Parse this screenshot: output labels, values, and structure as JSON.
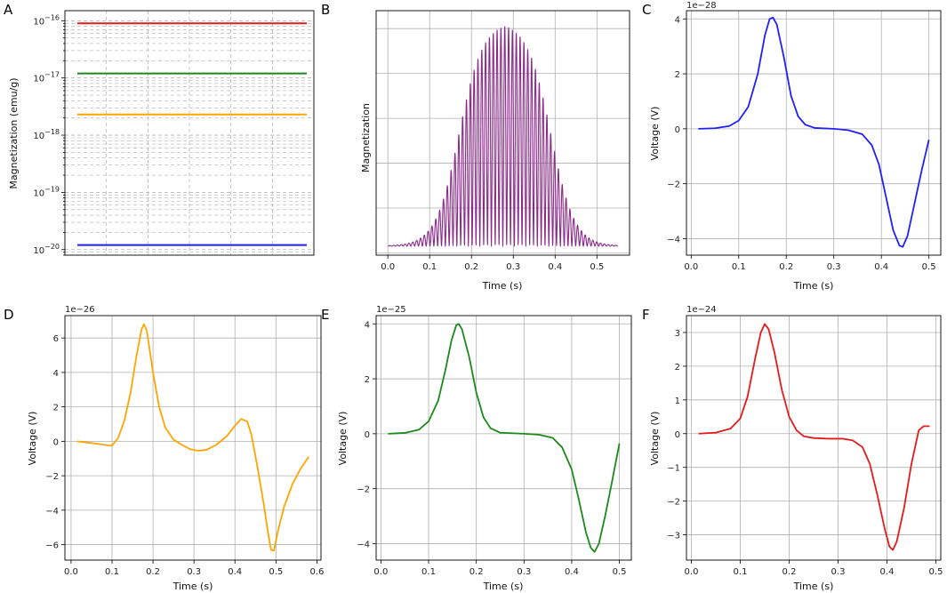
{
  "chart_data": [
    {
      "id": "A",
      "panel_label": "A",
      "type": "line",
      "yscale": "log",
      "ylabel": "Magnetization (emu/g)",
      "xlabel": "",
      "ylim": [
        8e-21,
        1.5e-16
      ],
      "ytick_values": [
        1e-16,
        1e-17,
        1e-18,
        1e-19,
        1e-20
      ],
      "ytick_labels": [
        {
          "base": "10",
          "exp": "−16"
        },
        {
          "base": "10",
          "exp": "−17"
        },
        {
          "base": "10",
          "exp": "−18"
        },
        {
          "base": "10",
          "exp": "−19"
        },
        {
          "base": "10",
          "exp": "−20"
        }
      ],
      "grid": true,
      "series": [
        {
          "name": "red",
          "color": "#e41a1c",
          "value": 9e-17
        },
        {
          "name": "green",
          "color": "#1a8a1a",
          "value": 1.2e-17
        },
        {
          "name": "orange",
          "color": "#ffa500",
          "value": 2.3e-18
        },
        {
          "name": "blue",
          "color": "#1f1fff",
          "value": 1.2e-20
        }
      ]
    },
    {
      "id": "B",
      "panel_label": "B",
      "type": "line",
      "color": "#8b2a8b",
      "xlabel": "Time (s)",
      "ylabel": "Magnetization",
      "xlim": [
        -0.028,
        0.578
      ],
      "ylim": [
        -0.04,
        1.05
      ],
      "xticks": [
        0.0,
        0.1,
        0.2,
        0.3,
        0.4,
        0.5
      ],
      "xtick_labels": [
        "0.0",
        "0.1",
        "0.2",
        "0.3",
        "0.4",
        "0.5"
      ],
      "grid": true,
      "signal": {
        "t_start": 0.0,
        "t_end": 0.55,
        "center": 0.28,
        "plateau_halfwidth": 0.11,
        "edge_width": 0.028,
        "oscillations": 60,
        "peak": 1.0
      }
    },
    {
      "id": "C",
      "panel_label": "C",
      "type": "line",
      "color": "#1f1fff",
      "xlabel": "Time (s)",
      "ylabel": "Voltage (V)",
      "offset_text": "1e−28",
      "xlim": [
        -0.01,
        0.525
      ],
      "ylim": [
        -4.6,
        4.3
      ],
      "xticks": [
        0.0,
        0.1,
        0.2,
        0.3,
        0.4,
        0.5
      ],
      "xtick_labels": [
        "0.0",
        "0.1",
        "0.2",
        "0.3",
        "0.4",
        "0.5"
      ],
      "yticks": [
        -4,
        -2,
        0,
        2,
        4
      ],
      "ytick_labels": [
        "−4",
        "−2",
        "0",
        "2",
        "4"
      ],
      "grid": true,
      "points": [
        [
          0.015,
          0.0
        ],
        [
          0.05,
          0.02
        ],
        [
          0.08,
          0.1
        ],
        [
          0.1,
          0.3
        ],
        [
          0.12,
          0.8
        ],
        [
          0.14,
          2.0
        ],
        [
          0.155,
          3.4
        ],
        [
          0.165,
          4.0
        ],
        [
          0.172,
          4.05
        ],
        [
          0.18,
          3.8
        ],
        [
          0.195,
          2.6
        ],
        [
          0.21,
          1.2
        ],
        [
          0.225,
          0.45
        ],
        [
          0.24,
          0.15
        ],
        [
          0.26,
          0.03
        ],
        [
          0.3,
          0.0
        ],
        [
          0.33,
          -0.05
        ],
        [
          0.36,
          -0.2
        ],
        [
          0.38,
          -0.6
        ],
        [
          0.395,
          -1.3
        ],
        [
          0.41,
          -2.5
        ],
        [
          0.425,
          -3.7
        ],
        [
          0.438,
          -4.25
        ],
        [
          0.445,
          -4.3
        ],
        [
          0.455,
          -3.9
        ],
        [
          0.47,
          -2.7
        ],
        [
          0.485,
          -1.5
        ],
        [
          0.5,
          -0.4
        ]
      ]
    },
    {
      "id": "D",
      "panel_label": "D",
      "type": "line",
      "color": "#ffa500",
      "xlabel": "Time (s)",
      "ylabel": "Voltage (V)",
      "offset_text": "1e−26",
      "xlim": [
        -0.015,
        0.61
      ],
      "ylim": [
        -6.9,
        7.3
      ],
      "xticks": [
        0.0,
        0.1,
        0.2,
        0.3,
        0.4,
        0.5,
        0.6
      ],
      "xtick_labels": [
        "0.0",
        "0.1",
        "0.2",
        "0.3",
        "0.4",
        "0.5",
        "0.6"
      ],
      "yticks": [
        -6,
        -4,
        -2,
        0,
        2,
        4,
        6
      ],
      "ytick_labels": [
        "−6",
        "−4",
        "−2",
        "0",
        "2",
        "4",
        "6"
      ],
      "grid": true,
      "points": [
        [
          0.015,
          0.0
        ],
        [
          0.05,
          -0.1
        ],
        [
          0.08,
          -0.2
        ],
        [
          0.1,
          -0.25
        ],
        [
          0.115,
          0.2
        ],
        [
          0.13,
          1.2
        ],
        [
          0.145,
          2.8
        ],
        [
          0.16,
          5.0
        ],
        [
          0.172,
          6.5
        ],
        [
          0.178,
          6.8
        ],
        [
          0.185,
          6.4
        ],
        [
          0.2,
          4.0
        ],
        [
          0.215,
          2.0
        ],
        [
          0.23,
          0.8
        ],
        [
          0.25,
          0.1
        ],
        [
          0.27,
          -0.2
        ],
        [
          0.29,
          -0.45
        ],
        [
          0.31,
          -0.55
        ],
        [
          0.33,
          -0.5
        ],
        [
          0.355,
          -0.2
        ],
        [
          0.38,
          0.3
        ],
        [
          0.4,
          0.9
        ],
        [
          0.415,
          1.3
        ],
        [
          0.43,
          1.15
        ],
        [
          0.44,
          0.4
        ],
        [
          0.455,
          -1.5
        ],
        [
          0.47,
          -3.6
        ],
        [
          0.48,
          -5.2
        ],
        [
          0.488,
          -6.3
        ],
        [
          0.495,
          -6.35
        ],
        [
          0.505,
          -5.2
        ],
        [
          0.52,
          -3.8
        ],
        [
          0.54,
          -2.5
        ],
        [
          0.56,
          -1.6
        ],
        [
          0.58,
          -0.9
        ]
      ]
    },
    {
      "id": "E",
      "panel_label": "E",
      "type": "line",
      "color": "#1a8a1a",
      "xlabel": "Time (s)",
      "ylabel": "Voltage (V)",
      "offset_text": "1e−25",
      "xlim": [
        -0.01,
        0.525
      ],
      "ylim": [
        -4.6,
        4.3
      ],
      "xticks": [
        0.0,
        0.1,
        0.2,
        0.3,
        0.4,
        0.5
      ],
      "xtick_labels": [
        "0.0",
        "0.1",
        "0.2",
        "0.3",
        "0.4",
        "0.5"
      ],
      "yticks": [
        -4,
        -2,
        0,
        2,
        4
      ],
      "ytick_labels": [
        "−4",
        "−2",
        "0",
        "2",
        "4"
      ],
      "grid": true,
      "points": [
        [
          0.015,
          0.0
        ],
        [
          0.05,
          0.03
        ],
        [
          0.08,
          0.15
        ],
        [
          0.1,
          0.45
        ],
        [
          0.12,
          1.2
        ],
        [
          0.135,
          2.3
        ],
        [
          0.148,
          3.4
        ],
        [
          0.158,
          3.95
        ],
        [
          0.163,
          4.0
        ],
        [
          0.17,
          3.8
        ],
        [
          0.185,
          2.8
        ],
        [
          0.2,
          1.5
        ],
        [
          0.215,
          0.6
        ],
        [
          0.23,
          0.2
        ],
        [
          0.25,
          0.04
        ],
        [
          0.3,
          0.0
        ],
        [
          0.33,
          -0.03
        ],
        [
          0.36,
          -0.15
        ],
        [
          0.38,
          -0.5
        ],
        [
          0.4,
          -1.3
        ],
        [
          0.415,
          -2.4
        ],
        [
          0.43,
          -3.6
        ],
        [
          0.44,
          -4.15
        ],
        [
          0.448,
          -4.3
        ],
        [
          0.457,
          -4.0
        ],
        [
          0.47,
          -3.0
        ],
        [
          0.485,
          -1.7
        ],
        [
          0.5,
          -0.35
        ]
      ]
    },
    {
      "id": "F",
      "panel_label": "F",
      "type": "line",
      "color": "#e41a1c",
      "xlabel": "Time (s)",
      "ylabel": "Voltage (V)",
      "offset_text": "1e−24",
      "xlim": [
        -0.01,
        0.51
      ],
      "ylim": [
        -3.75,
        3.5
      ],
      "xticks": [
        0.0,
        0.1,
        0.2,
        0.3,
        0.4,
        0.5
      ],
      "xtick_labels": [
        "0.0",
        "0.1",
        "0.2",
        "0.3",
        "0.4",
        "0.5"
      ],
      "yticks": [
        -3,
        -2,
        -1,
        0,
        1,
        2,
        3
      ],
      "ytick_labels": [
        "−3",
        "−2",
        "−1",
        "0",
        "1",
        "2",
        "3"
      ],
      "grid": true,
      "points": [
        [
          0.015,
          0.0
        ],
        [
          0.05,
          0.03
        ],
        [
          0.08,
          0.15
        ],
        [
          0.1,
          0.45
        ],
        [
          0.115,
          1.1
        ],
        [
          0.13,
          2.2
        ],
        [
          0.142,
          3.0
        ],
        [
          0.15,
          3.25
        ],
        [
          0.158,
          3.1
        ],
        [
          0.17,
          2.4
        ],
        [
          0.185,
          1.3
        ],
        [
          0.2,
          0.5
        ],
        [
          0.215,
          0.1
        ],
        [
          0.23,
          -0.08
        ],
        [
          0.25,
          -0.13
        ],
        [
          0.28,
          -0.15
        ],
        [
          0.31,
          -0.15
        ],
        [
          0.33,
          -0.2
        ],
        [
          0.35,
          -0.4
        ],
        [
          0.365,
          -0.9
        ],
        [
          0.38,
          -1.8
        ],
        [
          0.395,
          -2.8
        ],
        [
          0.405,
          -3.35
        ],
        [
          0.412,
          -3.45
        ],
        [
          0.42,
          -3.2
        ],
        [
          0.435,
          -2.2
        ],
        [
          0.45,
          -0.9
        ],
        [
          0.465,
          0.1
        ],
        [
          0.475,
          0.22
        ],
        [
          0.487,
          0.22
        ]
      ]
    }
  ]
}
